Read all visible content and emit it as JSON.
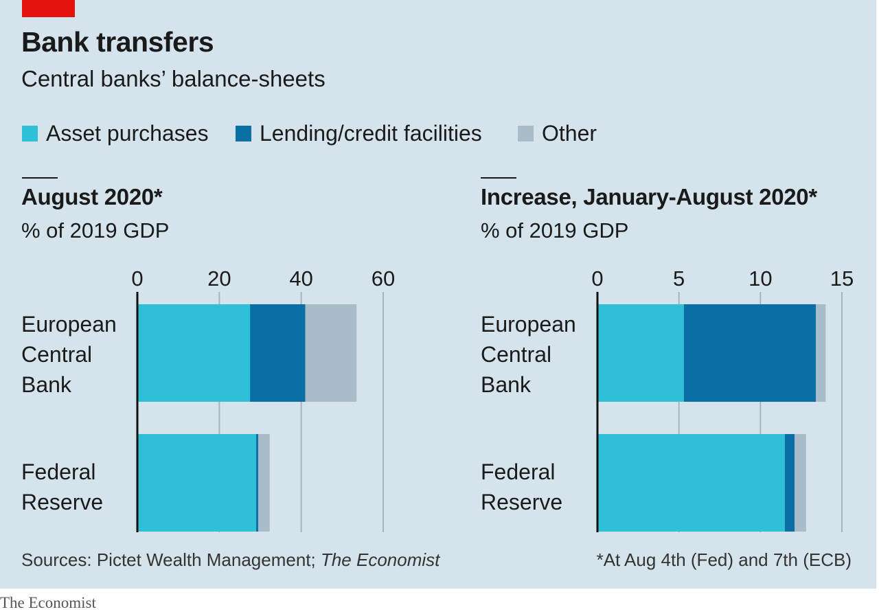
{
  "title": "Bank transfers",
  "subtitle": "Central banks’ balance-sheets",
  "legend": [
    {
      "label": "Asset purchases",
      "color": "#2fbfd6"
    },
    {
      "label": "Lending/credit facilities",
      "color": "#0a6fa5"
    },
    {
      "label": "Other",
      "color": "#a8bdc9"
    }
  ],
  "panels": {
    "left": {
      "title": "August 2020*",
      "unit": "% of 2019 GDP"
    },
    "right": {
      "title": "Increase, January-August 2020*",
      "unit": "% of 2019 GDP"
    }
  },
  "categories": [
    {
      "label_lines": [
        "European",
        "Central",
        "Bank"
      ]
    },
    {
      "label_lines": [
        "Federal",
        "Reserve"
      ]
    }
  ],
  "source": {
    "prefix": "Sources: Pictet Wealth Management; ",
    "italic": "The Economist"
  },
  "footnote": "*At Aug 4th (Fed) and 7th (ECB)",
  "brand": "The Economist",
  "chart_data": [
    {
      "type": "bar",
      "stacked": true,
      "orientation": "horizontal",
      "title": "August 2020*",
      "xlabel": "% of 2019 GDP",
      "categories": [
        "European Central Bank",
        "Federal Reserve"
      ],
      "series": [
        {
          "name": "Asset purchases",
          "values": [
            27.5,
            29
          ]
        },
        {
          "name": "Lending/credit facilities",
          "values": [
            13.5,
            0.5
          ]
        },
        {
          "name": "Other",
          "values": [
            12.5,
            2.8
          ]
        }
      ],
      "xlim": [
        0,
        60
      ],
      "xticks": [
        0,
        20,
        40,
        60
      ],
      "grid": true
    },
    {
      "type": "bar",
      "stacked": true,
      "orientation": "horizontal",
      "title": "Increase, January-August 2020*",
      "xlabel": "% of 2019 GDP",
      "categories": [
        "European Central Bank",
        "Federal Reserve"
      ],
      "series": [
        {
          "name": "Asset purchases",
          "values": [
            5.3,
            11.5
          ]
        },
        {
          "name": "Lending/credit facilities",
          "values": [
            8.1,
            0.6
          ]
        },
        {
          "name": "Other",
          "values": [
            0.6,
            0.7
          ]
        }
      ],
      "xlim": [
        0,
        15
      ],
      "xticks": [
        0,
        5,
        10,
        15
      ],
      "grid": true
    }
  ]
}
